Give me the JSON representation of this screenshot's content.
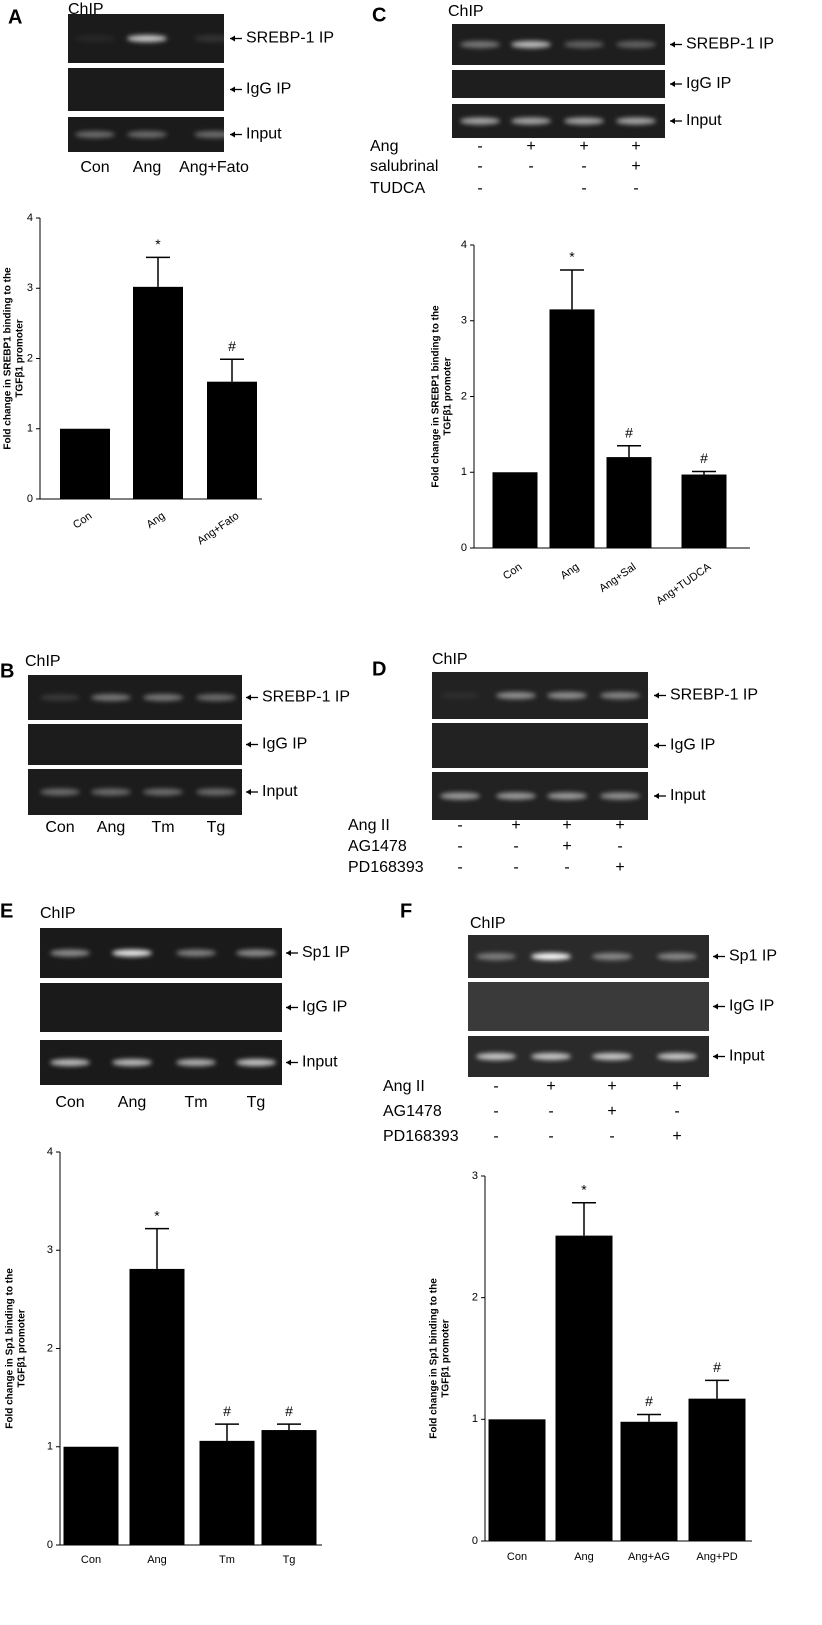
{
  "panels": [
    {
      "label": "A",
      "chip": "ChIP",
      "bands": [
        "SREBP-1 IP",
        "IgG IP",
        "Input"
      ],
      "lanes": [
        "Con",
        "Ang",
        "Ang+Fato"
      ]
    },
    {
      "label": "C",
      "chip": "ChIP",
      "bands": [
        "SREBP-1 IP",
        "IgG IP",
        "Input"
      ],
      "treatments": [
        {
          "name": "Ang",
          "signs": [
            "-",
            "+",
            "+",
            "+"
          ]
        },
        {
          "name": "salubrinal",
          "signs": [
            "-",
            "-",
            "-",
            "+"
          ]
        },
        {
          "name": "TUDCA",
          "signs": [
            "-",
            null,
            "-",
            "-"
          ]
        }
      ]
    },
    {
      "label": "B",
      "chip": "ChIP",
      "bands": [
        "SREBP-1 IP",
        "IgG IP",
        "Input"
      ],
      "lanes": [
        "Con",
        "Ang",
        "Tm",
        "Tg"
      ]
    },
    {
      "label": "D",
      "chip": "ChIP",
      "bands": [
        "SREBP-1 IP",
        "IgG IP",
        "Input"
      ],
      "treatments": [
        {
          "name": "Ang II",
          "signs": [
            "-",
            "+",
            "+",
            "+"
          ]
        },
        {
          "name": "AG1478",
          "signs": [
            "-",
            "-",
            "+",
            "-"
          ]
        },
        {
          "name": "PD168393",
          "signs": [
            "-",
            "-",
            "-",
            "+"
          ]
        }
      ]
    },
    {
      "label": "E",
      "chip": "ChIP",
      "bands": [
        "Sp1 IP",
        "IgG IP",
        "Input"
      ],
      "lanes": [
        "Con",
        "Ang",
        "Tm",
        "Tg"
      ]
    },
    {
      "label": "F",
      "chip": "ChIP",
      "bands": [
        "Sp1 IP",
        "IgG IP",
        "Input"
      ],
      "treatments": [
        {
          "name": "Ang II",
          "signs": [
            "-",
            "+",
            "+",
            "+"
          ]
        },
        {
          "name": "AG1478",
          "signs": [
            "-",
            "-",
            "+",
            "-"
          ]
        },
        {
          "name": "PD168393",
          "signs": [
            "-",
            "-",
            "-",
            "+"
          ]
        }
      ]
    }
  ],
  "chart_data": [
    {
      "type": "bar",
      "ylabel": [
        "Fold change in SREBP1 binding to the",
        "TGFβ1 promoter"
      ],
      "categories": [
        "Con",
        "Ang",
        "Ang+Fato"
      ],
      "values": [
        1,
        3.02,
        1.67
      ],
      "errors": [
        null,
        0.42,
        0.32
      ],
      "annotations": [
        null,
        "*",
        "#"
      ],
      "color": "#000000",
      "ylim": [
        0,
        4
      ],
      "yticks": [
        0,
        1,
        2,
        3,
        4
      ]
    },
    {
      "type": "bar",
      "ylabel": [
        "Fold change in SREBP1 binding to the",
        "TGFβ1 promoter"
      ],
      "categories": [
        "Con",
        "Ang",
        "Ang+Sal",
        "Ang+TUDCA"
      ],
      "values": [
        1,
        3.15,
        1.2,
        0.97
      ],
      "errors": [
        null,
        0.52,
        0.15,
        0.04
      ],
      "annotations": [
        null,
        "*",
        "#",
        "#"
      ],
      "color": "#000000",
      "ylim": [
        0,
        4
      ],
      "yticks": [
        0,
        1,
        2,
        3,
        4
      ]
    },
    {
      "type": "bar",
      "ylabel": [
        "Fold change in Sp1 binding to the",
        "TGFβ1 promoter"
      ],
      "categories": [
        "Con",
        "Ang",
        "Tm",
        "Tg"
      ],
      "values": [
        1,
        2.81,
        1.06,
        1.17
      ],
      "errors": [
        null,
        0.41,
        0.17,
        0.06
      ],
      "annotations": [
        null,
        "*",
        "#",
        "#"
      ],
      "color": "#000000",
      "ylim": [
        0,
        4
      ],
      "yticks": [
        0,
        1,
        2,
        3,
        4
      ]
    },
    {
      "type": "bar",
      "ylabel": [
        "Fold change in Sp1 binding to the",
        "TGFβ1 promoter"
      ],
      "categories": [
        "Con",
        "Ang",
        "Ang+AG",
        "Ang+PD"
      ],
      "values": [
        1,
        2.51,
        0.98,
        1.17
      ],
      "errors": [
        null,
        0.27,
        0.06,
        0.15
      ],
      "annotations": [
        null,
        "*",
        "#",
        "#"
      ],
      "color": "#000000",
      "ylim": [
        0,
        3
      ],
      "yticks": [
        0,
        1,
        2,
        3
      ]
    }
  ]
}
